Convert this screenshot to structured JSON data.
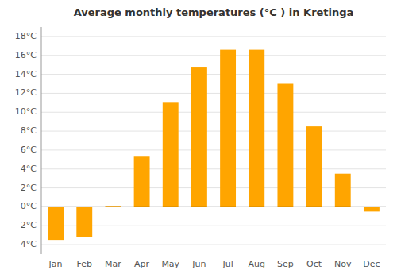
{
  "chart_data": {
    "type": "bar",
    "title": "Average monthly temperatures (°C ) in Kretinga",
    "categories": [
      "Jan",
      "Feb",
      "Mar",
      "Apr",
      "May",
      "Jun",
      "Jul",
      "Aug",
      "Sep",
      "Oct",
      "Nov",
      "Dec"
    ],
    "values": [
      -3.5,
      -3.2,
      0.1,
      5.3,
      11.0,
      14.8,
      16.6,
      16.6,
      13.0,
      8.5,
      3.5,
      -0.5
    ],
    "color": "#FFA500",
    "ylim": [
      -5,
      19
    ],
    "yticks": [
      {
        "value": -4,
        "label": "-4°C"
      },
      {
        "value": -2,
        "label": "-2°C"
      },
      {
        "value": 0,
        "label": "0°C"
      },
      {
        "value": 2,
        "label": "2°C"
      },
      {
        "value": 4,
        "label": "4°C"
      },
      {
        "value": 6,
        "label": "6°C"
      },
      {
        "value": 8,
        "label": "8°C"
      },
      {
        "value": 10,
        "label": "10°C"
      },
      {
        "value": 12,
        "label": "12°C"
      },
      {
        "value": 14,
        "label": "14°C"
      },
      {
        "value": 16,
        "label": "16°C"
      },
      {
        "value": 18,
        "label": "18°C"
      }
    ],
    "grid": true
  }
}
